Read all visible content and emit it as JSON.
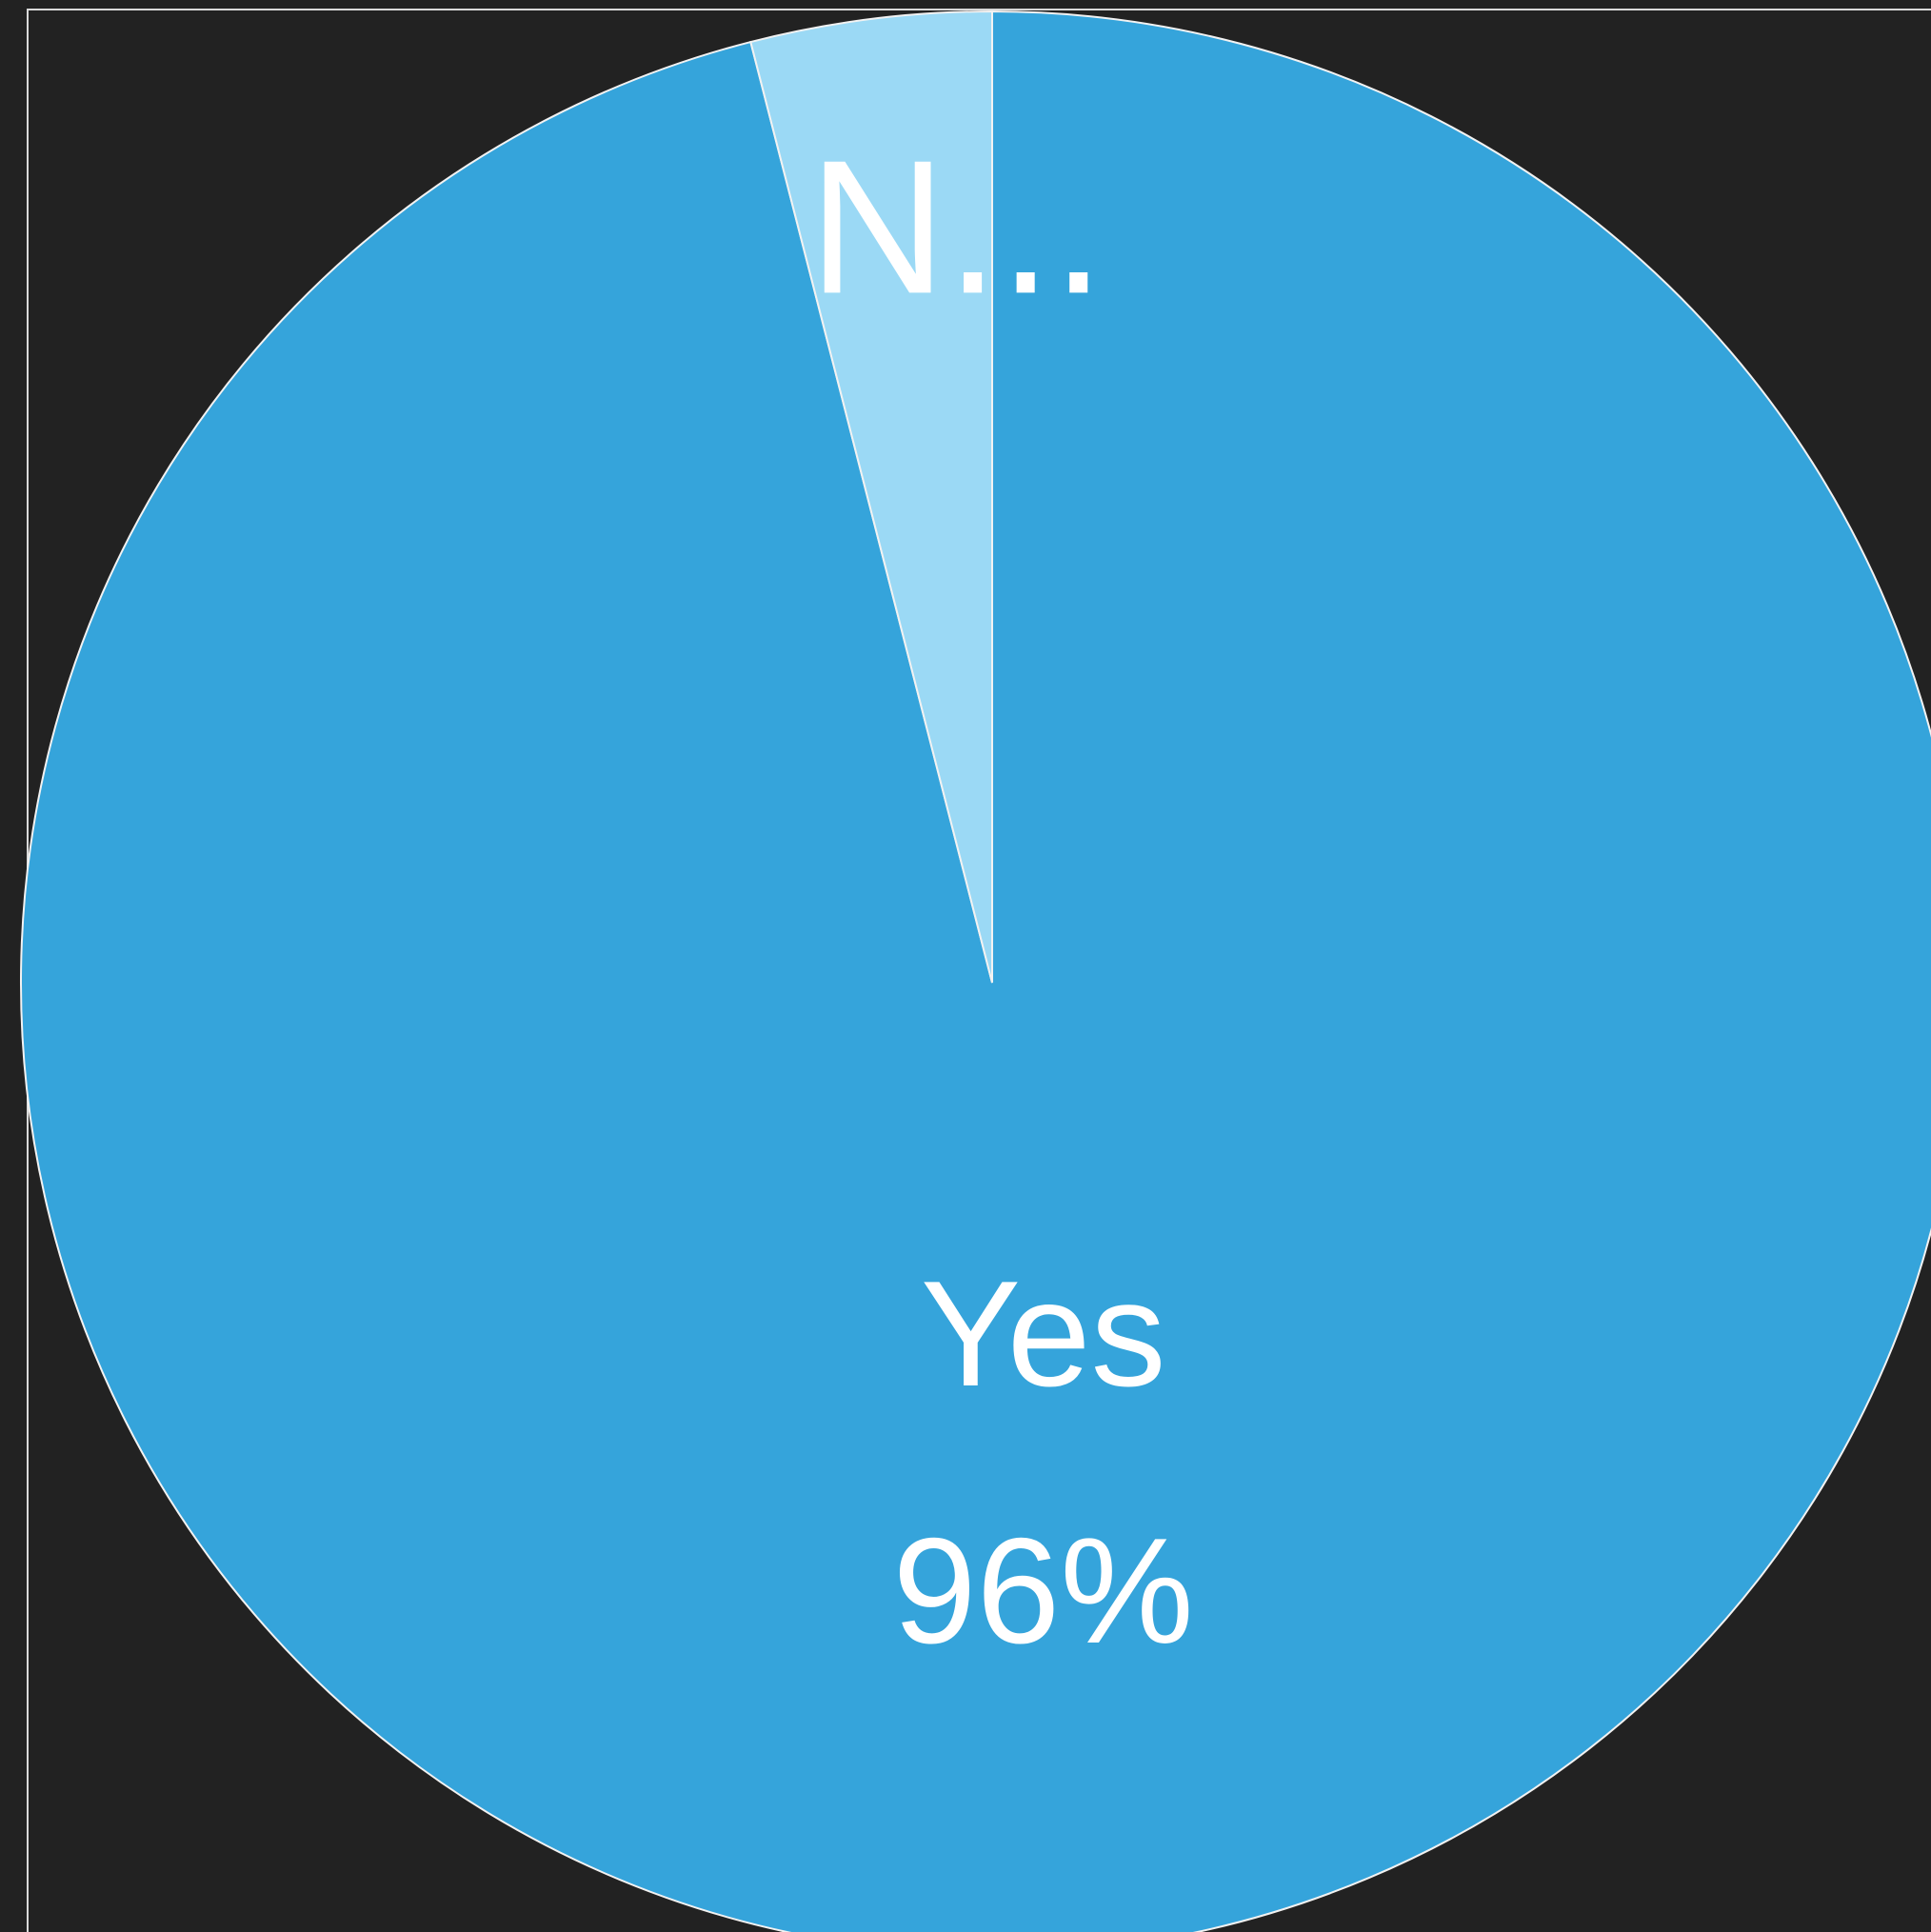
{
  "chart_data": {
    "type": "pie",
    "slices": [
      {
        "label": "Yes",
        "value": 96,
        "display": "96%",
        "color": "#35a4db"
      },
      {
        "label": "N...",
        "value": 4,
        "display": "",
        "color": "#9bd9f5"
      }
    ],
    "slice_border_color": "#f2f2f2",
    "background": "#222222"
  }
}
